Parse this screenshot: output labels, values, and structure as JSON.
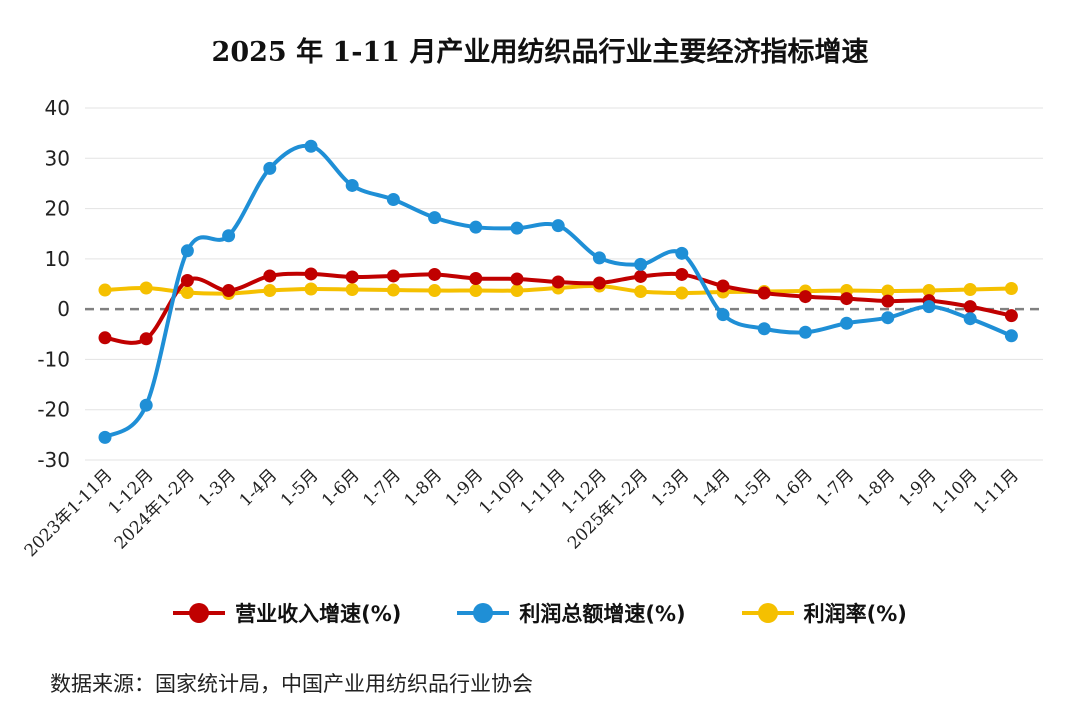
{
  "title": "2025 年 1-11 月产业用纺织品行业主要经济指标增速",
  "source": "数据来源：国家统计局，中国产业用纺织品行业协会",
  "colors": {
    "revenue": "#c00000",
    "profit_total": "#1f8fd6",
    "profit_rate": "#f5c000",
    "grid": "#e3e3e3",
    "zero_line": "#808080"
  },
  "chart_data": {
    "type": "line",
    "title": "2025 年 1-11 月产业用纺织品行业主要经济指标增速",
    "xlabel": "",
    "ylabel": "",
    "ylim": [
      -30,
      40
    ],
    "yticks": [
      40,
      30,
      20,
      10,
      0,
      -10,
      -20,
      -30
    ],
    "grid": true,
    "legend_position": "bottom",
    "categories": [
      "2023年1-11月",
      "1-12月",
      "2024年1-2月",
      "1-3月",
      "1-4月",
      "1-5月",
      "1-6月",
      "1-7月",
      "1-8月",
      "1-9月",
      "1-10月",
      "1-11月",
      "1-12月",
      "2025年1-2月",
      "1-3月",
      "1-4月",
      "1-5月",
      "1-6月",
      "1-7月",
      "1-8月",
      "1-9月",
      "1-10月",
      "1-11月"
    ],
    "series": [
      {
        "name": "营业收入增速(%)",
        "color_key": "revenue",
        "values": [
          -5.7,
          -5.9,
          5.7,
          3.7,
          6.6,
          7.0,
          6.4,
          6.6,
          6.9,
          6.1,
          6.0,
          5.4,
          5.2,
          6.5,
          6.9,
          4.6,
          3.2,
          2.5,
          2.1,
          1.6,
          1.7,
          0.5,
          -1.3
        ]
      },
      {
        "name": "利润总额增速(%)",
        "color_key": "profit_total",
        "values": [
          -25.5,
          -19.1,
          11.6,
          14.6,
          28.0,
          32.4,
          24.6,
          21.8,
          18.2,
          16.3,
          16.1,
          16.6,
          10.2,
          8.9,
          11.1,
          -1.1,
          -3.9,
          -4.6,
          -2.8,
          -1.7,
          0.5,
          -1.9,
          -5.3
        ]
      },
      {
        "name": "利润率(%)",
        "color_key": "profit_rate",
        "values": [
          3.8,
          4.2,
          3.3,
          3.1,
          3.7,
          4.0,
          3.9,
          3.8,
          3.7,
          3.7,
          3.7,
          4.2,
          4.6,
          3.5,
          3.2,
          3.4,
          3.5,
          3.6,
          3.7,
          3.6,
          3.7,
          3.9,
          4.1
        ]
      }
    ]
  }
}
